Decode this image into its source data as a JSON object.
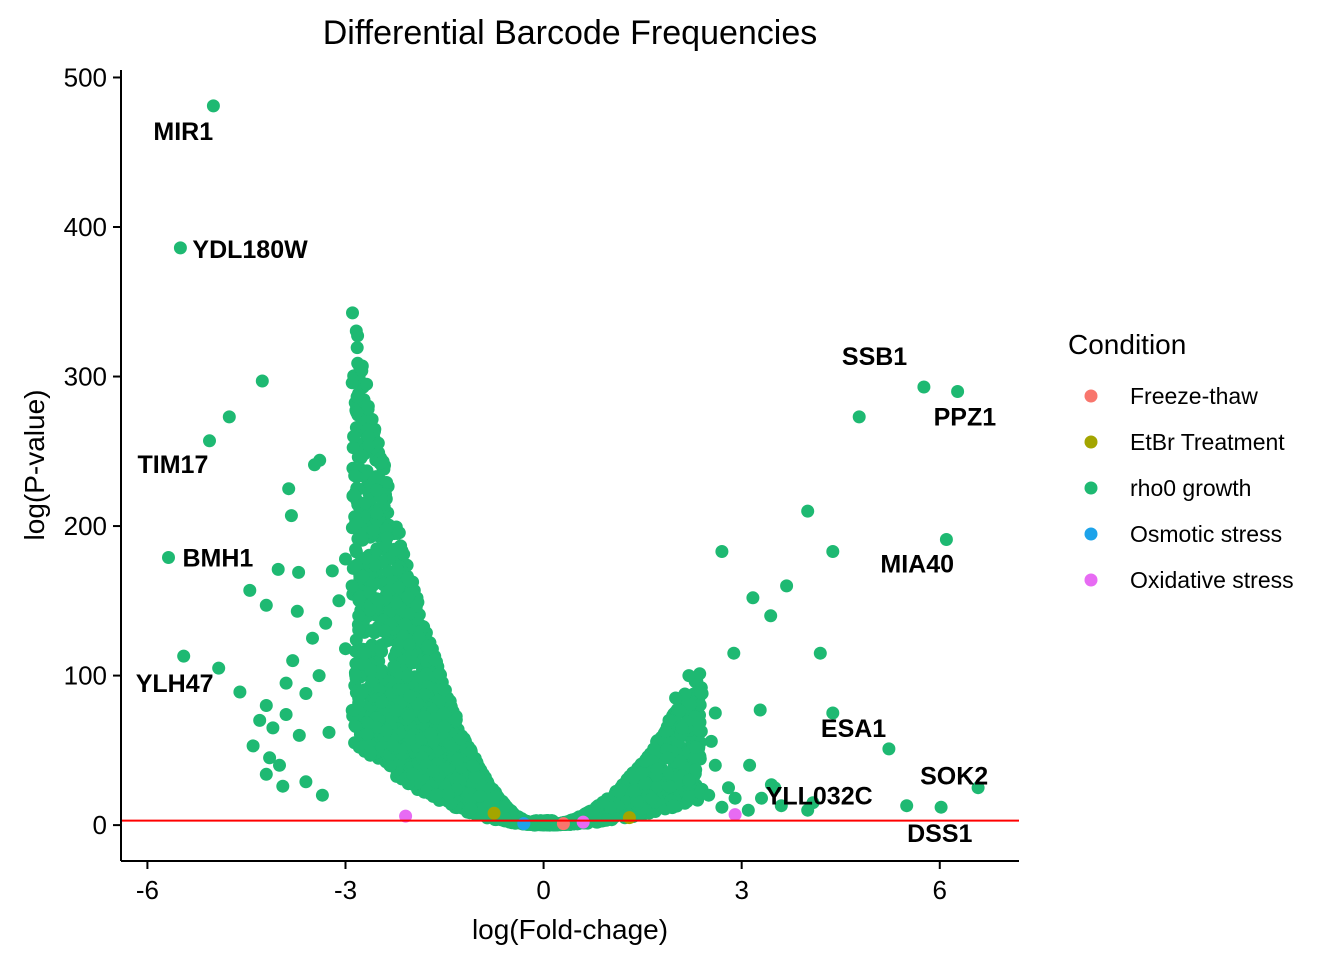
{
  "chart_data": {
    "type": "scatter",
    "title": "Differential Barcode Frequencies",
    "xlabel": "log(Fold-chage)",
    "ylabel": "log(P-value)",
    "xlim": [
      -6.4,
      7.2
    ],
    "ylim": [
      -24,
      505
    ],
    "x_ticks": [
      -6,
      -3,
      0,
      3,
      6
    ],
    "x_tick_labels": [
      "-6",
      "-3",
      "0",
      "3",
      "6"
    ],
    "y_ticks": [
      0,
      100,
      200,
      300,
      400,
      500
    ],
    "y_tick_labels": [
      "0",
      "100",
      "200",
      "300",
      "400",
      "500"
    ],
    "threshold_line": {
      "y": 3,
      "color": "#ff0000"
    },
    "legend": {
      "title": "Condition",
      "position": "right",
      "entries": [
        {
          "label": "Freeze-thaw",
          "color": "#F8766D"
        },
        {
          "label": "EtBr Treatment",
          "color": "#A3A500"
        },
        {
          "label": "rho0 growth",
          "color": "#1EB972"
        },
        {
          "label": "Osmotic stress",
          "color": "#1DA3EA"
        },
        {
          "label": "Oxidative stress",
          "color": "#E76BF3"
        }
      ]
    },
    "labeled_points": [
      {
        "gene": "MIR1",
        "x": -5.0,
        "y": 481
      },
      {
        "gene": "YDL180W",
        "x": -5.5,
        "y": 386
      },
      {
        "gene": "TIM17",
        "x": -5.06,
        "y": 257
      },
      {
        "gene": "BMH1",
        "x": -5.68,
        "y": 179
      },
      {
        "gene": "YLH47",
        "x": -5.45,
        "y": 113
      },
      {
        "gene": "SSB1",
        "x": 5.76,
        "y": 293
      },
      {
        "gene": "PPZ1",
        "x": 6.27,
        "y": 290
      },
      {
        "gene": "MIA40",
        "x": 6.1,
        "y": 191
      },
      {
        "gene": "ESA1",
        "x": 5.23,
        "y": 51
      },
      {
        "gene": "SOK2",
        "x": 6.58,
        "y": 25
      },
      {
        "gene": "YLL032C",
        "x": 5.5,
        "y": 13
      },
      {
        "gene": "DSS1",
        "x": 6.02,
        "y": 12
      }
    ],
    "outlier_points": [
      {
        "x": -4.26,
        "y": 297,
        "series": "rho0 growth"
      },
      {
        "x": -4.76,
        "y": 273,
        "series": "rho0 growth"
      },
      {
        "x": 4.78,
        "y": 273,
        "series": "rho0 growth"
      },
      {
        "x": -3.39,
        "y": 244,
        "series": "rho0 growth"
      },
      {
        "x": -3.47,
        "y": 241,
        "series": "rho0 growth"
      },
      {
        "x": -3.86,
        "y": 225,
        "series": "rho0 growth"
      },
      {
        "x": -3.82,
        "y": 207,
        "series": "rho0 growth"
      },
      {
        "x": 4.0,
        "y": 210,
        "series": "rho0 growth"
      },
      {
        "x": 2.7,
        "y": 183,
        "series": "rho0 growth"
      },
      {
        "x": 4.38,
        "y": 183,
        "series": "rho0 growth"
      },
      {
        "x": -4.02,
        "y": 171,
        "series": "rho0 growth"
      },
      {
        "x": -3.71,
        "y": 169,
        "series": "rho0 growth"
      },
      {
        "x": 3.68,
        "y": 160,
        "series": "rho0 growth"
      },
      {
        "x": -4.45,
        "y": 157,
        "series": "rho0 growth"
      },
      {
        "x": 3.17,
        "y": 152,
        "series": "rho0 growth"
      },
      {
        "x": -4.2,
        "y": 147,
        "series": "rho0 growth"
      },
      {
        "x": 3.44,
        "y": 140,
        "series": "rho0 growth"
      },
      {
        "x": -3.73,
        "y": 143,
        "series": "rho0 growth"
      },
      {
        "x": 4.19,
        "y": 115,
        "series": "rho0 growth"
      },
      {
        "x": 2.88,
        "y": 115,
        "series": "rho0 growth"
      },
      {
        "x": -4.92,
        "y": 105,
        "series": "rho0 growth"
      },
      {
        "x": -4.6,
        "y": 89,
        "series": "rho0 growth"
      },
      {
        "x": 3.28,
        "y": 77,
        "series": "rho0 growth"
      },
      {
        "x": 4.38,
        "y": 75,
        "series": "rho0 growth"
      },
      {
        "x": 2.6,
        "y": 75,
        "series": "rho0 growth"
      },
      {
        "x": 2.54,
        "y": 56,
        "series": "rho0 growth"
      },
      {
        "x": 3.12,
        "y": 40,
        "series": "rho0 growth"
      },
      {
        "x": 3.45,
        "y": 27,
        "series": "rho0 growth"
      },
      {
        "x": 4.08,
        "y": 15,
        "series": "rho0 growth"
      },
      {
        "x": 4.0,
        "y": 10,
        "series": "rho0 growth"
      },
      {
        "x": 2.9,
        "y": 7,
        "series": "Oxidative stress"
      },
      {
        "x": -2.09,
        "y": 6,
        "series": "Oxidative stress"
      },
      {
        "x": -0.75,
        "y": 8,
        "series": "EtBr Treatment"
      },
      {
        "x": 1.3,
        "y": 5,
        "series": "EtBr Treatment"
      },
      {
        "x": 0.6,
        "y": 2,
        "series": "Oxidative stress"
      },
      {
        "x": -0.3,
        "y": 1,
        "series": "Osmotic stress"
      },
      {
        "x": 0.3,
        "y": 1,
        "series": "Freeze-thaw"
      }
    ],
    "main_series": "rho0 growth",
    "main_series_points_count": "dense cloud (thousands); rendered procedurally"
  }
}
